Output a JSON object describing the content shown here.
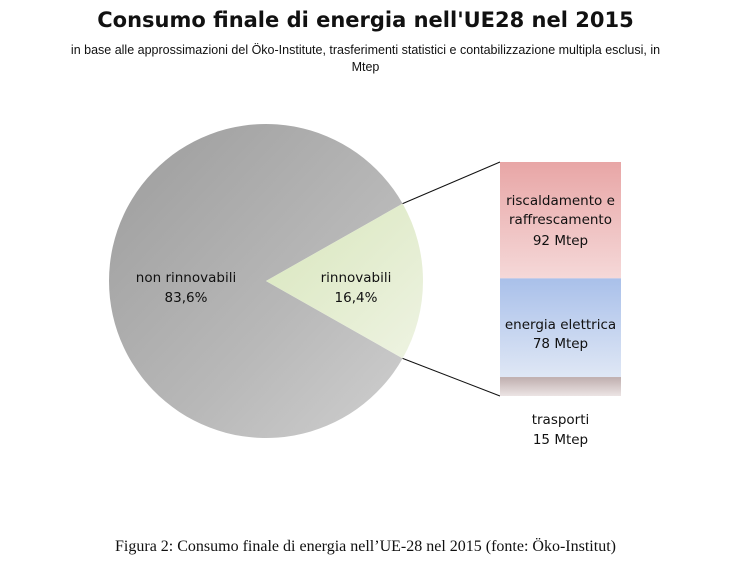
{
  "title": "Consumo finale di energia nell'UE28 nel 2015",
  "subtitle": "in base alle approssimazioni del Öko-Institute, trasferimenti statistici e contabilizzazione multipla esclusi, in Mtep",
  "caption": "Figura 2: Consumo finale di energia nell’UE-28 nel 2015 (fonte: Öko-Institut)",
  "chart_data": [
    {
      "type": "pie",
      "slices": [
        {
          "label": "non rinnovabili",
          "value": 83.6,
          "value_label": "83,6%",
          "color": "#b4b4b4"
        },
        {
          "label": "rinnovabili",
          "value": 16.4,
          "value_label": "16,4%",
          "color": "#dfeac8"
        }
      ]
    },
    {
      "type": "bar",
      "stacked": true,
      "categories": [
        "rinnovabili"
      ],
      "series": [
        {
          "name": "riscaldamento e raffrescamento",
          "value": 92,
          "value_label": "92 Mtep",
          "color": "#e8aaaa"
        },
        {
          "name": "energia elettrica",
          "value": 78,
          "value_label": "78 Mtep",
          "color": "#b5c8e8"
        },
        {
          "name": "trasporti",
          "value": 15,
          "value_label": "15 Mtep",
          "color": "#c8b8b8"
        }
      ]
    }
  ]
}
